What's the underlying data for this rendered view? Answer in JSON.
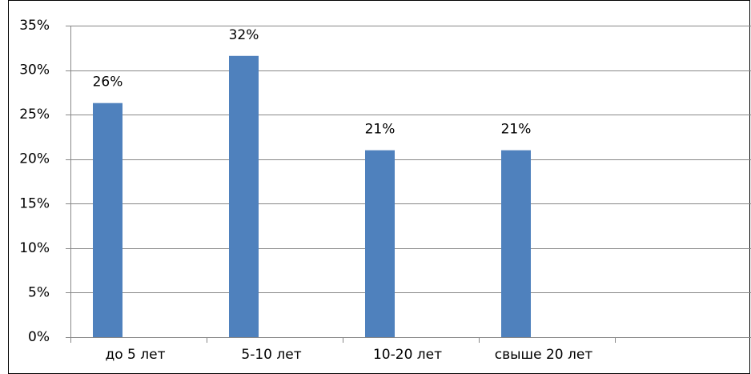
{
  "chart_data": {
    "type": "bar",
    "categories": [
      "до 5 лет",
      "5-10 лет",
      "10-20 лет",
      "свыше 20 лет",
      null
    ],
    "values": [
      26.3,
      31.6,
      21.0,
      21.0,
      null
    ],
    "value_labels": [
      "26%",
      "32%",
      "21%",
      "21%",
      null
    ],
    "color": "#4f81bd",
    "ylim": [
      0,
      35
    ],
    "yticks": [
      {
        "value": 0,
        "label": "0%"
      },
      {
        "value": 5,
        "label": "5%"
      },
      {
        "value": 10,
        "label": "10%"
      },
      {
        "value": 15,
        "label": "15%"
      },
      {
        "value": 20,
        "label": "20%"
      },
      {
        "value": 25,
        "label": "25%"
      },
      {
        "value": 30,
        "label": "30%"
      },
      {
        "value": 35,
        "label": "35%"
      }
    ],
    "grid": true
  }
}
